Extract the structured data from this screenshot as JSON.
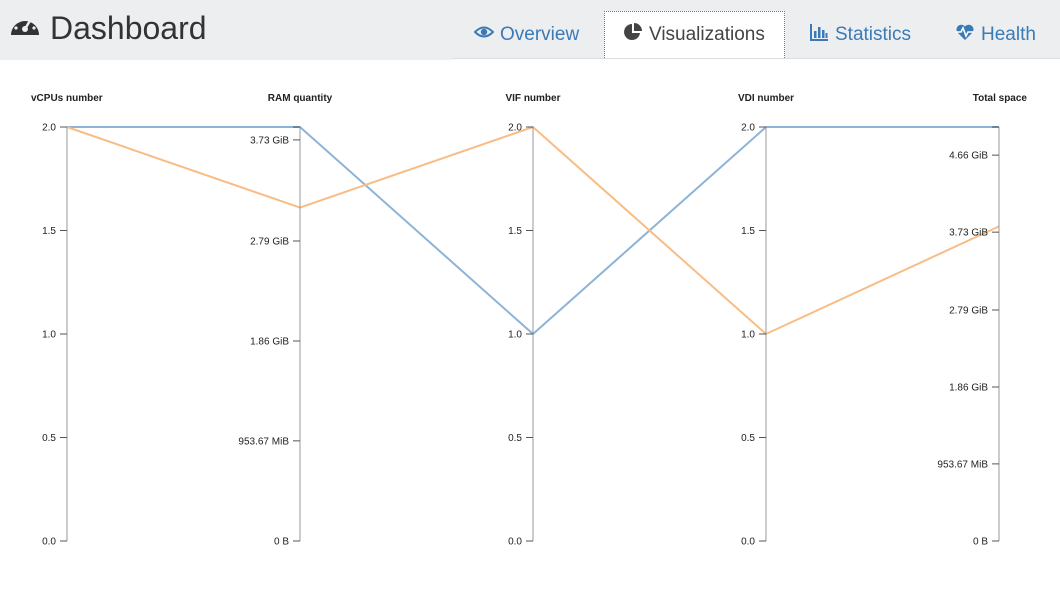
{
  "header": {
    "title": "Dashboard",
    "tabs": [
      {
        "label": "Overview",
        "icon": "eye-icon",
        "active": false
      },
      {
        "label": "Visualizations",
        "icon": "pie-chart-icon",
        "active": true
      },
      {
        "label": "Statistics",
        "icon": "bar-chart-icon",
        "active": false
      },
      {
        "label": "Health",
        "icon": "heartbeat-icon",
        "active": false
      }
    ]
  },
  "chart_data": {
    "type": "parallel-coordinates",
    "title": "",
    "axes": [
      {
        "label": "vCPUs number",
        "ticks": [
          "0.0",
          "0.5",
          "1.0",
          "1.5",
          "2.0"
        ],
        "range": [
          0,
          2
        ],
        "unit": ""
      },
      {
        "label": "RAM quantity",
        "ticks": [
          "0 B",
          "953.67 MiB",
          "1.86 GiB",
          "2.79 GiB",
          "3.73 GiB"
        ],
        "range": [
          0,
          3.85
        ],
        "unit": "GiB"
      },
      {
        "label": "VIF number",
        "ticks": [
          "0.0",
          "0.5",
          "1.0",
          "1.5",
          "2.0"
        ],
        "range": [
          0,
          2
        ],
        "unit": ""
      },
      {
        "label": "VDI number",
        "ticks": [
          "0.0",
          "0.5",
          "1.0",
          "1.5",
          "2.0"
        ],
        "range": [
          0,
          2
        ],
        "unit": ""
      },
      {
        "label": "Total space",
        "ticks": [
          "0 B",
          "953.67 MiB",
          "1.86 GiB",
          "2.79 GiB",
          "3.73 GiB",
          "4.66 GiB"
        ],
        "range": [
          0,
          5
        ],
        "unit": "GiB"
      }
    ],
    "series": [
      {
        "color": "#8db4d6",
        "values": [
          2,
          3.85,
          1,
          2,
          5
        ]
      },
      {
        "color": "#f8bd85",
        "values": [
          2,
          3.1,
          2,
          1,
          3.8
        ]
      }
    ]
  }
}
